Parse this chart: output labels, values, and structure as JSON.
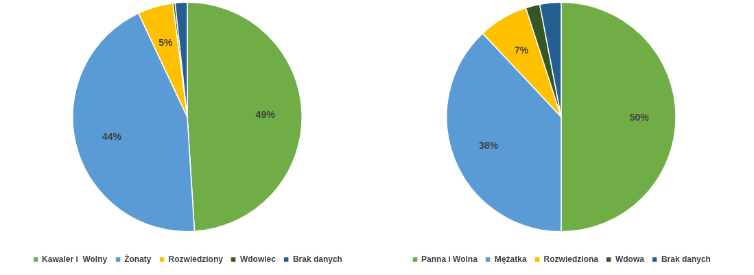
{
  "chart_data": [
    {
      "type": "pie",
      "categories": [
        "Kawaler i  Wolny",
        "Żonaty",
        "Rozwiedziony",
        "Wdowiec",
        "Brak danych"
      ],
      "values": [
        49,
        44,
        5,
        0.3,
        1.7
      ],
      "colors": [
        "#70ad47",
        "#5b9bd5",
        "#ffc000",
        "#375623",
        "#255e91"
      ],
      "value_labels": [
        "49%",
        "44%",
        "5%",
        null,
        null
      ],
      "legend": "bottom"
    },
    {
      "type": "pie",
      "categories": [
        "Panna i Wolna",
        "Mężatka",
        "Rozwiedziona",
        "Wdowa",
        "Brak danych"
      ],
      "values": [
        50,
        38,
        7,
        2,
        3
      ],
      "colors": [
        "#70ad47",
        "#5b9bd5",
        "#ffc000",
        "#375623",
        "#255e91"
      ],
      "value_labels": [
        "50%",
        "38%",
        "7%",
        null,
        null
      ],
      "legend": "bottom"
    }
  ]
}
